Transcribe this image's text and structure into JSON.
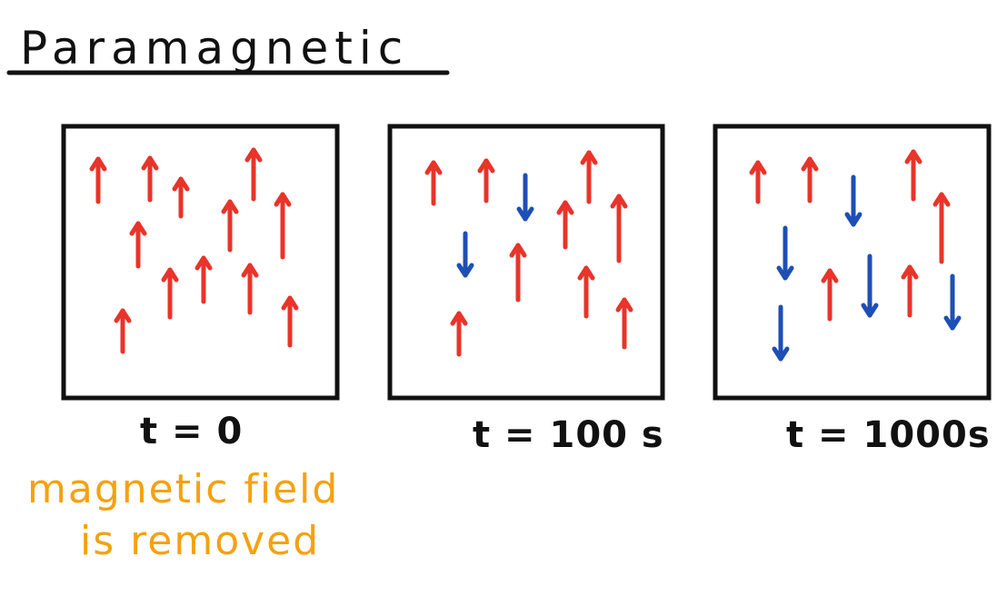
{
  "title": "Paramagnetic",
  "colors": {
    "ink": "#111111",
    "up_arrow": "#e8342a",
    "down_arrow": "#1d4fb4",
    "note": "#f5a10f"
  },
  "panels": [
    {
      "label": "t = 0",
      "arrows": [
        {
          "dir": "up"
        },
        {
          "dir": "up"
        },
        {
          "dir": "up"
        },
        {
          "dir": "up"
        },
        {
          "dir": "up"
        },
        {
          "dir": "up"
        },
        {
          "dir": "up"
        },
        {
          "dir": "up"
        },
        {
          "dir": "up"
        },
        {
          "dir": "up"
        },
        {
          "dir": "up"
        },
        {
          "dir": "up"
        }
      ]
    },
    {
      "label": "t = 100 s",
      "arrows": [
        {
          "dir": "up"
        },
        {
          "dir": "up"
        },
        {
          "dir": "down"
        },
        {
          "dir": "up"
        },
        {
          "dir": "up"
        },
        {
          "dir": "up"
        },
        {
          "dir": "down"
        },
        {
          "dir": "up"
        },
        {
          "dir": "up"
        },
        {
          "dir": "up"
        },
        {
          "dir": "up"
        }
      ]
    },
    {
      "label": "t = 1000s",
      "arrows": [
        {
          "dir": "up"
        },
        {
          "dir": "up"
        },
        {
          "dir": "down"
        },
        {
          "dir": "up"
        },
        {
          "dir": "up"
        },
        {
          "dir": "down"
        },
        {
          "dir": "up"
        },
        {
          "dir": "down"
        },
        {
          "dir": "up"
        },
        {
          "dir": "down"
        },
        {
          "dir": "down"
        }
      ]
    }
  ],
  "note": {
    "line1": "magnetic field",
    "line2": "is removed"
  }
}
